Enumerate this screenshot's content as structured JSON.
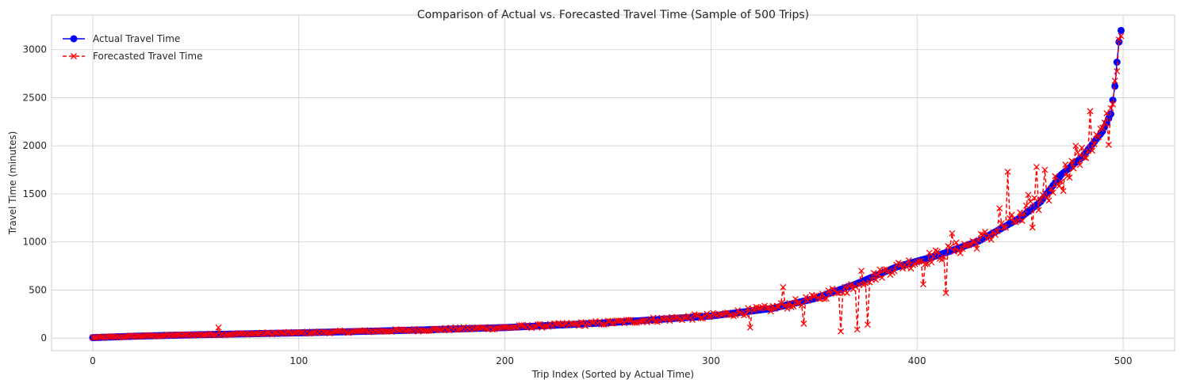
{
  "chart_data": {
    "type": "line",
    "title": "Comparison of Actual vs. Forecasted Travel Time (Sample of 500 Trips)",
    "xlabel": "Trip Index (Sorted by Actual Time)",
    "ylabel": "Travel Time (minutes)",
    "xlim": [
      -20,
      525
    ],
    "ylim": [
      -130,
      3360
    ],
    "xticks": [
      0,
      100,
      200,
      300,
      400,
      500
    ],
    "yticks": [
      0,
      500,
      1000,
      1500,
      2000,
      2500,
      3000
    ],
    "grid": true,
    "legend_position": "top-left",
    "n_points": 500,
    "series": [
      {
        "name": "Actual Travel Time",
        "color": "#0000ff",
        "linestyle": "solid",
        "marker": "circle",
        "profile": [
          [
            0,
            5
          ],
          [
            20,
            20
          ],
          [
            50,
            35
          ],
          [
            100,
            55
          ],
          [
            150,
            80
          ],
          [
            200,
            110
          ],
          [
            250,
            160
          ],
          [
            300,
            230
          ],
          [
            330,
            310
          ],
          [
            350,
            410
          ],
          [
            370,
            560
          ],
          [
            390,
            740
          ],
          [
            410,
            860
          ],
          [
            430,
            1010
          ],
          [
            450,
            1250
          ],
          [
            460,
            1420
          ],
          [
            470,
            1700
          ],
          [
            480,
            1880
          ],
          [
            490,
            2150
          ],
          [
            494,
            2330
          ],
          [
            496,
            2620
          ],
          [
            497,
            2870
          ],
          [
            498,
            3080
          ],
          [
            499,
            3200
          ]
        ]
      },
      {
        "name": "Forecasted Travel Time",
        "color": "#ff0000",
        "linestyle": "dashed",
        "marker": "x",
        "noise": [
          [
            0,
            8
          ],
          [
            100,
            12
          ],
          [
            200,
            18
          ],
          [
            300,
            30
          ],
          [
            350,
            45
          ],
          [
            400,
            60
          ],
          [
            450,
            90
          ],
          [
            499,
            120
          ]
        ],
        "outliers": [
          [
            61,
            110
          ],
          [
            319,
            110
          ],
          [
            335,
            530
          ],
          [
            345,
            150
          ],
          [
            363,
            70
          ],
          [
            366,
            470
          ],
          [
            371,
            90
          ],
          [
            373,
            700
          ],
          [
            376,
            140
          ],
          [
            403,
            560
          ],
          [
            414,
            470
          ],
          [
            417,
            1090
          ],
          [
            440,
            1350
          ],
          [
            444,
            1730
          ],
          [
            451,
            1220
          ],
          [
            454,
            1490
          ],
          [
            456,
            1150
          ],
          [
            458,
            1780
          ],
          [
            462,
            1750
          ],
          [
            464,
            1430
          ],
          [
            471,
            1530
          ],
          [
            477,
            2000
          ],
          [
            484,
            2360
          ],
          [
            493,
            2010
          ]
        ]
      }
    ]
  }
}
